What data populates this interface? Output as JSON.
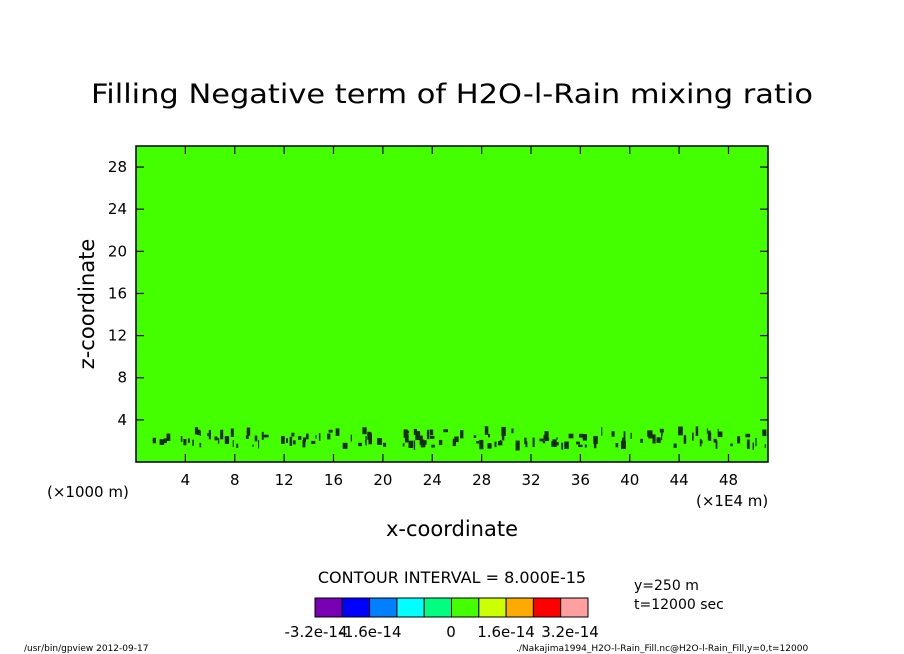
{
  "chart_data": {
    "type": "heatmap",
    "title": "Filling Negative term of H2O-l-Rain mixing ratio",
    "xlabel": "x-coordinate",
    "ylabel": "z-coordinate",
    "x_unit_left": "(×1000 m)",
    "x_unit_right": "(×1E4 m)",
    "xlim": [
      0,
      51.2
    ],
    "ylim": [
      0,
      30
    ],
    "xticks": [
      4,
      8,
      12,
      16,
      20,
      24,
      28,
      32,
      36,
      40,
      44,
      48
    ],
    "yticks": [
      4,
      8,
      12,
      16,
      20,
      24,
      28
    ],
    "xtick_labels": [
      "4",
      "8",
      "12",
      "16",
      "20",
      "24",
      "28",
      "32",
      "36",
      "40",
      "44",
      "48"
    ],
    "ytick_labels": [
      "4",
      "8",
      "12",
      "16",
      "20",
      "24",
      "28"
    ],
    "field_fill_color": "#44ff00",
    "field_value": 0,
    "contour_band": {
      "x_range": [
        1,
        51
      ],
      "z_range": [
        1.5,
        3
      ]
    },
    "contour_interval_text": "CONTOUR INTERVAL = 8.000E-15",
    "colorbar": {
      "colors": [
        "#7a00b4",
        "#0000ff",
        "#0080ff",
        "#00ffff",
        "#00ff80",
        "#44ff00",
        "#ccff00",
        "#ffaa00",
        "#ff0000",
        "#ffa0a0"
      ],
      "labels": [
        "-3.2e-14",
        "-1.6e-14",
        "0",
        "1.6e-14",
        "3.2e-14"
      ]
    },
    "info": [
      "y=250 m",
      "t=12000 sec"
    ],
    "footer_left": "/usr/bin/gpview  2012-09-17",
    "footer_right": "./Nakajima1994_H2O-l-Rain_Fill.nc@H2O-l-Rain_Fill,y=0,t=12000"
  }
}
